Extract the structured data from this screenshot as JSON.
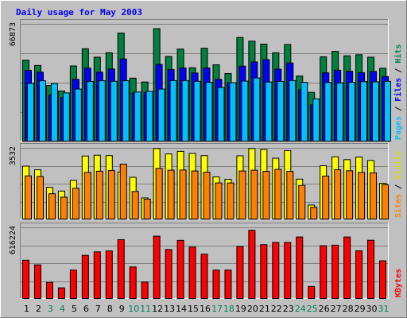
{
  "chart_data": {
    "type": "bar",
    "title": "Daily usage for May 2003",
    "days": [
      "1",
      "2",
      "3",
      "4",
      "5",
      "6",
      "7",
      "8",
      "9",
      "10",
      "11",
      "12",
      "13",
      "14",
      "15",
      "16",
      "17",
      "18",
      "19",
      "20",
      "21",
      "22",
      "23",
      "24",
      "25",
      "26",
      "27",
      "28",
      "29",
      "30",
      "31"
    ],
    "weekend_days": [
      "3",
      "4",
      "10",
      "11",
      "17",
      "18",
      "24",
      "25",
      "31"
    ],
    "panels": [
      {
        "name": "hits_files_pages",
        "max_label": "66873",
        "ymax": 66873,
        "legend": [
          "Pages",
          "Files",
          "Hits"
        ],
        "series": [
          {
            "name": "Hits",
            "color": "#008040",
            "values": [
              46000,
              43000,
              31600,
              28500,
              42700,
              52500,
              47700,
              50200,
              61400,
              35800,
              33600,
              63900,
              48100,
              52300,
              41700,
              52800,
              43400,
              38400,
              58900,
              56800,
              55100,
              50200,
              54900,
              37000,
              27700,
              47900,
              51000,
              48500,
              49100,
              47700,
              41400
            ]
          },
          {
            "name": "Files",
            "color": "#0000ff",
            "values": [
              40200,
              39200,
              26200,
              24800,
              35100,
              41500,
              39200,
              41000,
              46700,
              27500,
              27700,
              43600,
              40700,
              41600,
              38700,
              41600,
              35100,
              33200,
              42600,
              45000,
              46300,
              40900,
              44400,
              29200,
              20600,
              38800,
              40300,
              39700,
              38900,
              39600,
              36700
            ]
          },
          {
            "name": "Pages",
            "color": "#00c0ff",
            "values": [
              32800,
              34300,
              32700,
              27400,
              29600,
              33900,
              34300,
              34000,
              34300,
              27900,
              28300,
              29600,
              34400,
              34400,
              34000,
              33400,
              30500,
              33200,
              34100,
              35900,
              33600,
              33900,
              34400,
              33400,
              24000,
              33300,
              33100,
              33400,
              33800,
              33700,
              34000
            ]
          }
        ]
      },
      {
        "name": "visits_sites",
        "max_label": "3532",
        "ymax": 3532,
        "legend": [
          "Sites",
          "Visits"
        ],
        "series": [
          {
            "name": "Visits",
            "color": "#ffff00",
            "values": [
              2610,
              2430,
              1560,
              1380,
              1910,
              3110,
              3150,
              3130,
              2320,
              2060,
              1040,
              3480,
              3210,
              3340,
              3240,
              3130,
              2080,
              1960,
              3120,
              3480,
              3430,
              3000,
              3380,
              1970,
              690,
              2630,
              3070,
              2930,
              3060,
              2890,
              1760
            ]
          },
          {
            "name": "Sites",
            "color": "#ff8000",
            "values": [
              2130,
              2100,
              1250,
              1080,
              1520,
              2300,
              2360,
              2390,
              2710,
              1360,
              980,
              2500,
              2410,
              2420,
              2370,
              2310,
              1780,
              1780,
              2370,
              2410,
              2350,
              2450,
              2350,
              1660,
              580,
              2120,
              2430,
              2380,
              2300,
              2280,
              1700
            ]
          }
        ]
      },
      {
        "name": "kbytes",
        "max_label": "616224",
        "ymax": 616224,
        "legend": [
          "KBytes"
        ],
        "series": [
          {
            "name": "KBytes",
            "color": "#ff0000",
            "values": [
              330000,
              290000,
              140000,
              92000,
              245000,
              372000,
              402000,
              410000,
              507000,
              272000,
              142000,
              537000,
              422000,
              501000,
              443000,
              382000,
              245000,
              245000,
              448000,
              588000,
              464000,
              483000,
              483000,
              530000,
              104000,
              455000,
              460000,
              530000,
              411000,
              502000,
              325000
            ]
          }
        ]
      }
    ],
    "colors": {
      "background": "#c0c0c0",
      "plot_bg": "#c0c0c0",
      "grid": "#808080",
      "title": "#0000ff",
      "weekday_label": "#000000",
      "weekend_label": "#00805a"
    }
  }
}
